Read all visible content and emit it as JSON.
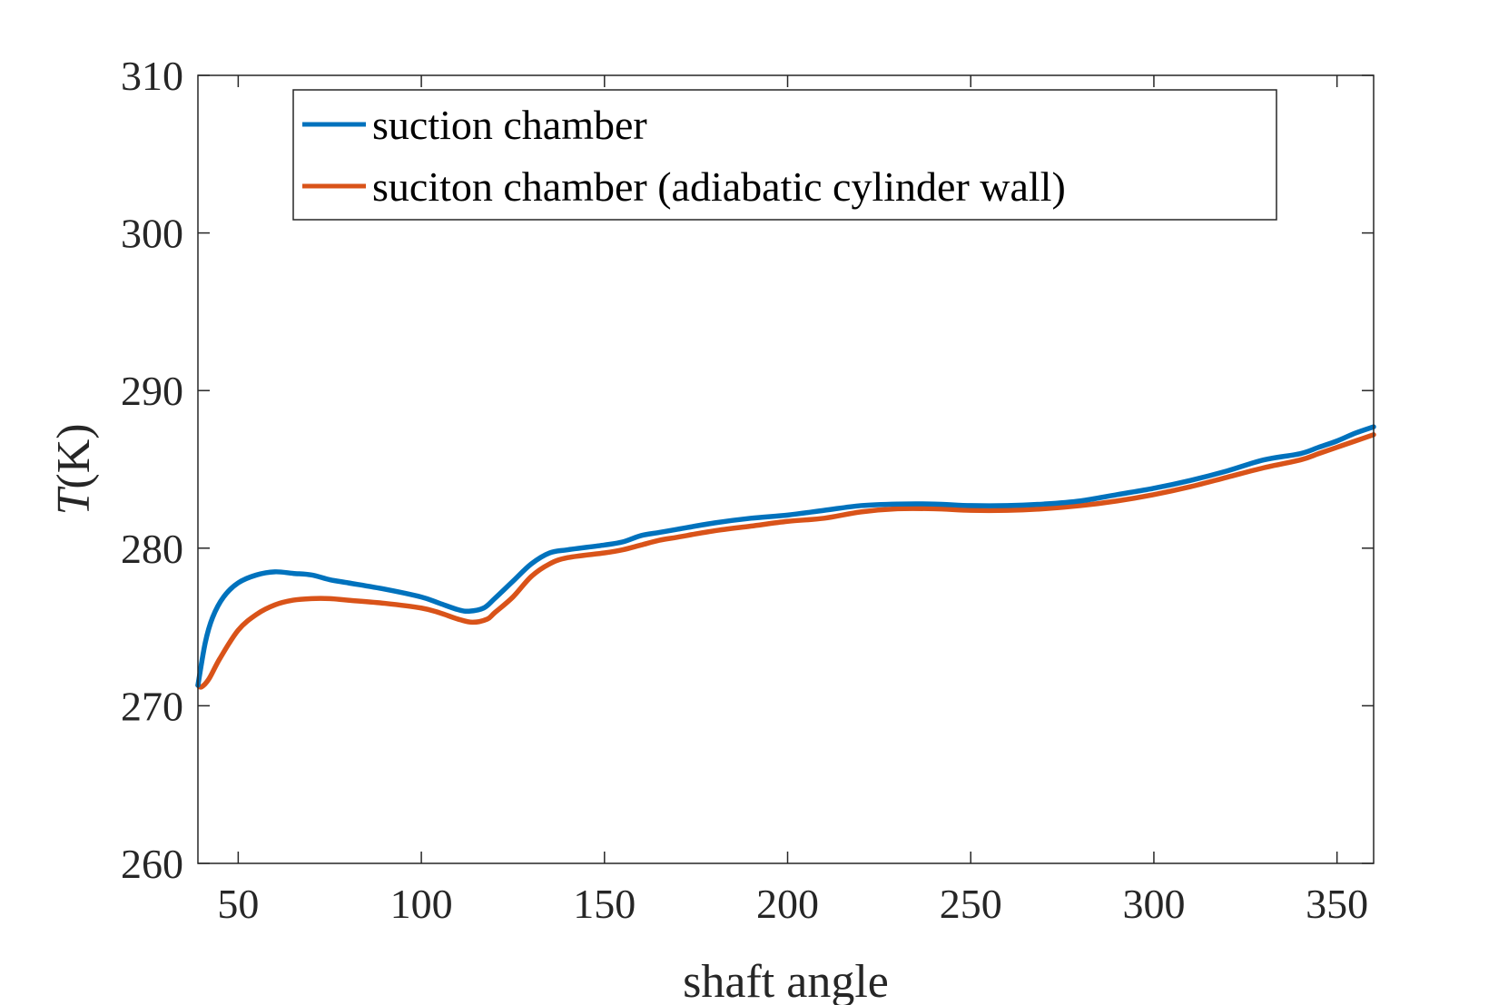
{
  "chart_data": {
    "type": "line",
    "title": "",
    "xlabel": "shaft angle",
    "ylabel_italic": "T",
    "ylabel_rest": "(K)",
    "xlim": [
      39,
      360
    ],
    "ylim": [
      260,
      310
    ],
    "xticks": [
      50,
      100,
      150,
      200,
      250,
      300,
      350
    ],
    "yticks": [
      260,
      270,
      280,
      290,
      300,
      310
    ],
    "grid": false,
    "legend_position": "top",
    "series": [
      {
        "name": "suction chamber",
        "color": "#0072BD",
        "x": [
          39,
          41,
          43,
          46,
          50,
          55,
          60,
          65,
          70,
          75,
          80,
          90,
          100,
          105,
          110,
          113,
          117,
          120,
          125,
          130,
          135,
          140,
          150,
          155,
          160,
          165,
          170,
          180,
          190,
          200,
          210,
          220,
          230,
          240,
          250,
          260,
          270,
          280,
          290,
          300,
          310,
          320,
          330,
          340,
          345,
          350,
          355,
          360
        ],
        "values": [
          271.3,
          274.0,
          275.6,
          276.9,
          277.8,
          278.3,
          278.5,
          278.4,
          278.3,
          278.0,
          277.8,
          277.4,
          276.9,
          276.5,
          276.1,
          276.0,
          276.2,
          276.8,
          277.9,
          279.0,
          279.7,
          279.9,
          280.2,
          280.4,
          280.8,
          281.0,
          281.2,
          281.6,
          281.9,
          282.1,
          282.4,
          282.7,
          282.8,
          282.8,
          282.7,
          282.7,
          282.8,
          283.0,
          283.4,
          283.8,
          284.3,
          284.9,
          285.6,
          286.0,
          286.4,
          286.8,
          287.3,
          287.7
        ]
      },
      {
        "name": "suciton chamber (adiabatic cylinder wall)",
        "color": "#D95319",
        "x": [
          39,
          40,
          42,
          45,
          50,
          55,
          60,
          65,
          70,
          75,
          80,
          90,
          100,
          105,
          110,
          114,
          118,
          120,
          125,
          130,
          135,
          140,
          150,
          155,
          160,
          165,
          170,
          180,
          190,
          200,
          210,
          220,
          230,
          240,
          250,
          260,
          270,
          280,
          290,
          300,
          310,
          320,
          330,
          340,
          345,
          350,
          355,
          360
        ],
        "values": [
          271.3,
          271.2,
          271.7,
          273.0,
          274.8,
          275.8,
          276.4,
          276.7,
          276.8,
          276.8,
          276.7,
          276.5,
          276.2,
          275.9,
          275.5,
          275.3,
          275.5,
          275.9,
          276.9,
          278.2,
          279.0,
          279.4,
          279.7,
          279.9,
          280.2,
          280.5,
          280.7,
          281.1,
          281.4,
          281.7,
          281.9,
          282.3,
          282.5,
          282.5,
          282.4,
          282.4,
          282.5,
          282.7,
          283.0,
          283.4,
          283.9,
          284.5,
          285.1,
          285.6,
          286.0,
          286.4,
          286.8,
          287.2
        ]
      }
    ]
  }
}
